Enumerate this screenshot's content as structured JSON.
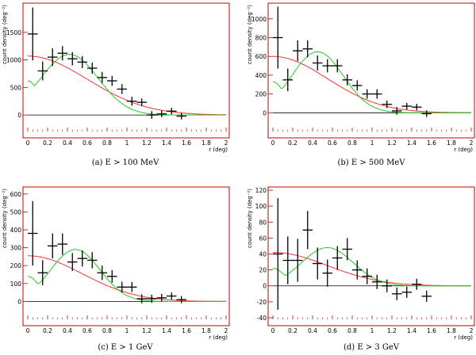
{
  "colors": {
    "frame": "#c00000",
    "data": "#000000",
    "model_red": "#ff3030",
    "model_green": "#22cc22",
    "zero_line": "#000000"
  },
  "chart_data": [
    {
      "type": "scatter",
      "caption": "(a)  E > 100 MeV",
      "xlabel": "r (deg)",
      "ylabel": "count density (deg⁻²)",
      "xlim": [
        0,
        2
      ],
      "ylim": [
        -300,
        2000
      ],
      "xticks": [
        0,
        0.2,
        0.4,
        0.6,
        0.8,
        1,
        1.2,
        1.4,
        1.6,
        1.8,
        2
      ],
      "xtick_labels": [
        "0",
        "0.2",
        "0.4",
        "0.6",
        "0.8",
        "1",
        "1.2",
        "1.4",
        "1.6",
        "1.8",
        "2"
      ],
      "yticks": [
        0,
        500,
        1000,
        1500
      ],
      "ytick_labels": [
        "0",
        "500",
        "1000",
        "1500"
      ],
      "points": [
        {
          "x": 0.05,
          "y": 1470,
          "err": 480
        },
        {
          "x": 0.15,
          "y": 800,
          "err": 170
        },
        {
          "x": 0.25,
          "y": 1050,
          "err": 160
        },
        {
          "x": 0.35,
          "y": 1120,
          "err": 130
        },
        {
          "x": 0.45,
          "y": 1020,
          "err": 120
        },
        {
          "x": 0.55,
          "y": 960,
          "err": 110
        },
        {
          "x": 0.65,
          "y": 850,
          "err": 100
        },
        {
          "x": 0.75,
          "y": 680,
          "err": 100
        },
        {
          "x": 0.85,
          "y": 620,
          "err": 90
        },
        {
          "x": 0.95,
          "y": 470,
          "err": 90
        },
        {
          "x": 1.05,
          "y": 250,
          "err": 80
        },
        {
          "x": 1.15,
          "y": 230,
          "err": 70
        },
        {
          "x": 1.25,
          "y": 0,
          "err": 70
        },
        {
          "x": 1.35,
          "y": 20,
          "err": 60
        },
        {
          "x": 1.45,
          "y": 70,
          "err": 60
        },
        {
          "x": 1.55,
          "y": -20,
          "err": 60
        }
      ],
      "model_red": {
        "amplitude": 1070,
        "sigma": 0.6
      },
      "model_green": {
        "amplitude": 1100,
        "r0": 0.42,
        "sigma": 0.29,
        "floor": 620
      }
    },
    {
      "type": "scatter",
      "caption": "(b)  E > 500 MeV",
      "xlabel": "r (deg)",
      "ylabel": "count density (deg⁻²)",
      "xlim": [
        0,
        2
      ],
      "ylim": [
        -200,
        1150
      ],
      "xticks": [
        0,
        0.2,
        0.4,
        0.6,
        0.8,
        1,
        1.2,
        1.4,
        1.6,
        1.8,
        2
      ],
      "xtick_labels": [
        "0",
        "0.2",
        "0.4",
        "0.6",
        "0.8",
        "1",
        "1.2",
        "1.4",
        "1.6",
        "1.8",
        "2"
      ],
      "yticks": [
        0,
        200,
        400,
        600,
        800,
        1000
      ],
      "ytick_labels": [
        "0",
        "200",
        "400",
        "600",
        "800",
        "1000"
      ],
      "points": [
        {
          "x": 0.05,
          "y": 800,
          "err": 330
        },
        {
          "x": 0.15,
          "y": 350,
          "err": 120
        },
        {
          "x": 0.25,
          "y": 660,
          "err": 110
        },
        {
          "x": 0.35,
          "y": 680,
          "err": 90
        },
        {
          "x": 0.45,
          "y": 530,
          "err": 80
        },
        {
          "x": 0.55,
          "y": 500,
          "err": 70
        },
        {
          "x": 0.65,
          "y": 500,
          "err": 70
        },
        {
          "x": 0.75,
          "y": 350,
          "err": 60
        },
        {
          "x": 0.85,
          "y": 290,
          "err": 55
        },
        {
          "x": 0.95,
          "y": 200,
          "err": 50
        },
        {
          "x": 1.05,
          "y": 200,
          "err": 50
        },
        {
          "x": 1.15,
          "y": 90,
          "err": 40
        },
        {
          "x": 1.25,
          "y": 20,
          "err": 40
        },
        {
          "x": 1.35,
          "y": 70,
          "err": 35
        },
        {
          "x": 1.45,
          "y": 60,
          "err": 35
        },
        {
          "x": 1.55,
          "y": -10,
          "err": 35
        }
      ],
      "model_red": {
        "amplitude": 600,
        "sigma": 0.55
      },
      "model_green": {
        "amplitude": 650,
        "r0": 0.45,
        "sigma": 0.26,
        "floor": 330
      }
    },
    {
      "type": "scatter",
      "caption": "(c)  E > 1 GeV",
      "xlabel": "r (deg)",
      "ylabel": "count density (deg⁻²)",
      "xlim": [
        0,
        2
      ],
      "ylim": [
        -100,
        630
      ],
      "xticks": [
        0,
        0.2,
        0.4,
        0.6,
        0.8,
        1,
        1.2,
        1.4,
        1.6,
        1.8,
        2
      ],
      "xtick_labels": [
        "0",
        "0.2",
        "0.4",
        "0.6",
        "0.8",
        "1",
        "1.2",
        "1.4",
        "1.6",
        "1.8",
        "2"
      ],
      "yticks": [
        0,
        100,
        200,
        300,
        400,
        500,
        600
      ],
      "ytick_labels": [
        "0",
        "100",
        "200",
        "300",
        "400",
        "500",
        "600"
      ],
      "points": [
        {
          "x": 0.05,
          "y": 380,
          "err": 180
        },
        {
          "x": 0.15,
          "y": 160,
          "err": 70
        },
        {
          "x": 0.25,
          "y": 310,
          "err": 70
        },
        {
          "x": 0.35,
          "y": 320,
          "err": 60
        },
        {
          "x": 0.45,
          "y": 220,
          "err": 50
        },
        {
          "x": 0.55,
          "y": 240,
          "err": 45
        },
        {
          "x": 0.65,
          "y": 230,
          "err": 45
        },
        {
          "x": 0.75,
          "y": 160,
          "err": 40
        },
        {
          "x": 0.85,
          "y": 140,
          "err": 35
        },
        {
          "x": 0.95,
          "y": 80,
          "err": 30
        },
        {
          "x": 1.05,
          "y": 80,
          "err": 28
        },
        {
          "x": 1.15,
          "y": 15,
          "err": 25
        },
        {
          "x": 1.25,
          "y": 15,
          "err": 22
        },
        {
          "x": 1.35,
          "y": 20,
          "err": 22
        },
        {
          "x": 1.45,
          "y": 30,
          "err": 20
        },
        {
          "x": 1.55,
          "y": 10,
          "err": 20
        }
      ],
      "model_red": {
        "amplitude": 255,
        "sigma": 0.55
      },
      "model_green": {
        "amplitude": 290,
        "r0": 0.48,
        "sigma": 0.25,
        "floor": 140
      }
    },
    {
      "type": "scatter",
      "caption": "(d)  E > 3 GeV",
      "xlabel": "r (deg)",
      "ylabel": "count density (deg⁻²)",
      "xlim": [
        0,
        2
      ],
      "ylim": [
        -42,
        122
      ],
      "xticks": [
        0,
        0.2,
        0.4,
        0.6,
        0.8,
        1,
        1.2,
        1.4,
        1.6,
        1.8,
        2
      ],
      "xtick_labels": [
        "0",
        "0.2",
        "0.4",
        "0.6",
        "0.8",
        "1",
        "1.2",
        "1.4",
        "1.6",
        "1.8",
        "2"
      ],
      "yticks": [
        -40,
        -20,
        0,
        20,
        40,
        60,
        80,
        100,
        120
      ],
      "ytick_labels": [
        "-40",
        "-20",
        "0",
        "20",
        "40",
        "60",
        "80",
        "100",
        "120"
      ],
      "points": [
        {
          "x": 0.05,
          "y": 40,
          "err": 70
        },
        {
          "x": 0.15,
          "y": 32,
          "err": 30
        },
        {
          "x": 0.25,
          "y": 32,
          "err": 27
        },
        {
          "x": 0.35,
          "y": 70,
          "err": 24
        },
        {
          "x": 0.45,
          "y": 28,
          "err": 20
        },
        {
          "x": 0.55,
          "y": 16,
          "err": 17
        },
        {
          "x": 0.65,
          "y": 35,
          "err": 15
        },
        {
          "x": 0.75,
          "y": 46,
          "err": 14
        },
        {
          "x": 0.85,
          "y": 20,
          "err": 12
        },
        {
          "x": 0.95,
          "y": 12,
          "err": 10
        },
        {
          "x": 1.05,
          "y": 5,
          "err": 9
        },
        {
          "x": 1.15,
          "y": 0,
          "err": 8
        },
        {
          "x": 1.25,
          "y": -10,
          "err": 8
        },
        {
          "x": 1.35,
          "y": -8,
          "err": 7
        },
        {
          "x": 1.45,
          "y": 2,
          "err": 7
        },
        {
          "x": 1.55,
          "y": -13,
          "err": 7
        }
      ],
      "model_red": {
        "amplitude": 42,
        "sigma": 0.55
      },
      "model_green": {
        "amplitude": 48,
        "r0": 0.55,
        "sigma": 0.26,
        "floor": 22
      }
    }
  ]
}
